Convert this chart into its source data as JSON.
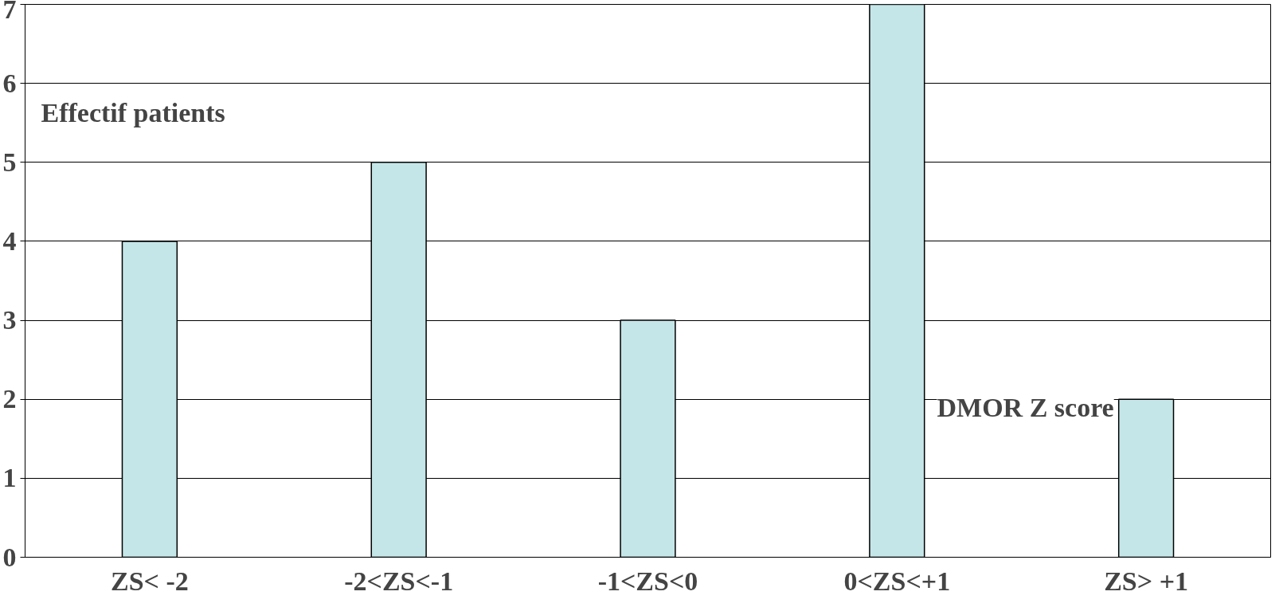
{
  "chart_data": {
    "type": "bar",
    "xlabel": "DMOR Z score",
    "ylabel": "Effectif patients",
    "categories": [
      "ZS< -2",
      "-2<ZS<-1",
      "-1<ZS<0",
      "0<ZS<+1",
      "ZS> +1"
    ],
    "values": [
      4,
      5,
      3,
      7,
      2
    ],
    "color": "#c5e6e8",
    "ylim": [
      0,
      7
    ],
    "yticks": [
      0,
      1,
      2,
      3,
      4,
      5,
      6,
      7
    ],
    "grid": "y"
  }
}
